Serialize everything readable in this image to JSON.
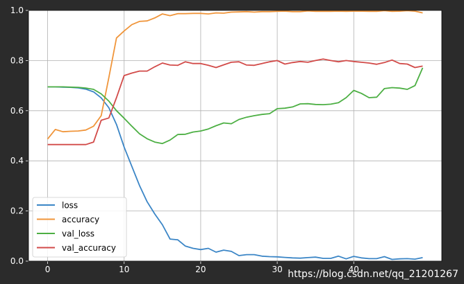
{
  "chart_data": {
    "type": "line",
    "title": "",
    "xlabel": "",
    "ylabel": "",
    "xlim": [
      -2.5,
      51.5
    ],
    "ylim": [
      0,
      1.0
    ],
    "x_ticks": [
      0,
      10,
      20,
      30,
      40
    ],
    "y_ticks": [
      0.0,
      0.2,
      0.4,
      0.6,
      0.8,
      1.0
    ],
    "grid": true,
    "legend_position": "lower-left",
    "x": [
      0,
      1,
      2,
      3,
      4,
      5,
      6,
      7,
      8,
      9,
      10,
      11,
      12,
      13,
      14,
      15,
      16,
      17,
      18,
      19,
      20,
      21,
      22,
      23,
      24,
      25,
      26,
      27,
      28,
      29,
      30,
      31,
      32,
      33,
      34,
      35,
      36,
      37,
      38,
      39,
      40,
      41,
      42,
      43,
      44,
      45,
      46,
      47,
      48,
      49
    ],
    "series": [
      {
        "name": "loss",
        "color": "#3a85c6",
        "values": [
          0.695,
          0.695,
          0.694,
          0.693,
          0.691,
          0.686,
          0.675,
          0.651,
          0.612,
          0.545,
          0.455,
          0.378,
          0.302,
          0.237,
          0.188,
          0.145,
          0.088,
          0.085,
          0.06,
          0.051,
          0.046,
          0.051,
          0.036,
          0.044,
          0.039,
          0.022,
          0.026,
          0.026,
          0.02,
          0.018,
          0.017,
          0.015,
          0.013,
          0.012,
          0.014,
          0.016,
          0.011,
          0.011,
          0.02,
          0.009,
          0.019,
          0.013,
          0.01,
          0.01,
          0.018,
          0.007,
          0.009,
          0.01,
          0.008,
          0.014
        ]
      },
      {
        "name": "accuracy",
        "color": "#f0953a",
        "values": [
          0.487,
          0.525,
          0.516,
          0.518,
          0.519,
          0.523,
          0.538,
          0.58,
          0.732,
          0.89,
          0.918,
          0.943,
          0.956,
          0.958,
          0.97,
          0.986,
          0.979,
          0.987,
          0.987,
          0.988,
          0.988,
          0.986,
          0.99,
          0.989,
          0.993,
          0.994,
          0.995,
          0.993,
          0.995,
          0.995,
          0.996,
          0.997,
          0.995,
          0.995,
          0.998,
          0.996,
          0.996,
          0.996,
          0.997,
          0.996,
          0.997,
          0.997,
          0.996,
          0.996,
          0.999,
          0.996,
          0.997,
          0.999,
          0.997,
          0.99
        ]
      },
      {
        "name": "val_loss",
        "color": "#4caf43",
        "values": [
          0.695,
          0.695,
          0.695,
          0.694,
          0.693,
          0.69,
          0.685,
          0.667,
          0.638,
          0.6,
          0.57,
          0.538,
          0.508,
          0.488,
          0.475,
          0.469,
          0.483,
          0.505,
          0.506,
          0.515,
          0.519,
          0.527,
          0.54,
          0.551,
          0.548,
          0.565,
          0.574,
          0.58,
          0.585,
          0.588,
          0.608,
          0.61,
          0.615,
          0.627,
          0.628,
          0.625,
          0.624,
          0.626,
          0.632,
          0.652,
          0.681,
          0.669,
          0.652,
          0.654,
          0.688,
          0.692,
          0.69,
          0.685,
          0.7,
          0.771
        ]
      },
      {
        "name": "val_accuracy",
        "color": "#d24a48",
        "values": [
          0.465,
          0.465,
          0.465,
          0.465,
          0.465,
          0.465,
          0.475,
          0.562,
          0.571,
          0.652,
          0.74,
          0.75,
          0.758,
          0.758,
          0.775,
          0.79,
          0.782,
          0.781,
          0.795,
          0.788,
          0.788,
          0.781,
          0.772,
          0.783,
          0.793,
          0.795,
          0.782,
          0.781,
          0.788,
          0.795,
          0.8,
          0.786,
          0.792,
          0.796,
          0.793,
          0.8,
          0.806,
          0.8,
          0.795,
          0.8,
          0.796,
          0.793,
          0.79,
          0.785,
          0.792,
          0.802,
          0.788,
          0.786,
          0.772,
          0.778
        ]
      }
    ]
  },
  "watermark": "https://blog.csdn.net/qq_21201267"
}
